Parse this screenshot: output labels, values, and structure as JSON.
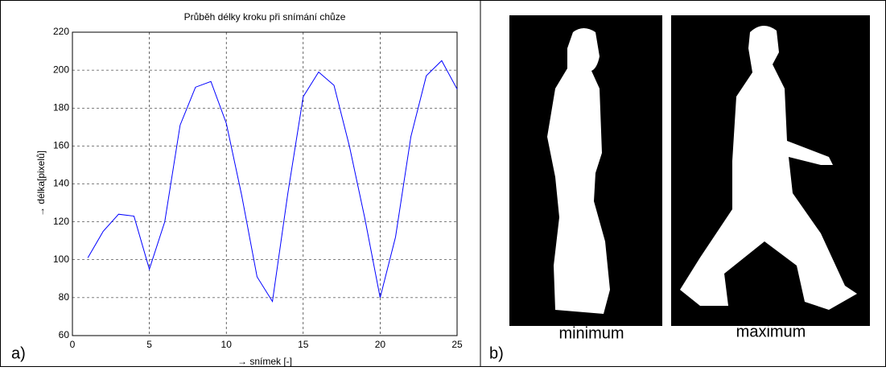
{
  "chart_data": {
    "type": "line",
    "title": "Průběh délky kroku při snímání chůze",
    "xlabel": "→ snímek [-]",
    "ylabel": "→ délka[pixelů]",
    "x": [
      1,
      2,
      3,
      4,
      5,
      6,
      7,
      8,
      9,
      10,
      11,
      12,
      13,
      14,
      15,
      16,
      17,
      18,
      19,
      20,
      21,
      22,
      23,
      24,
      25
    ],
    "series": [
      {
        "name": "délka kroku",
        "color": "#0000ff",
        "values": [
          101,
          115,
          124,
          123,
          95,
          120,
          171,
          191,
          194,
          172,
          134,
          91,
          78,
          135,
          186,
          199,
          192,
          160,
          122,
          80,
          112,
          165,
          197,
          205,
          190
        ]
      }
    ],
    "xlim": [
      0,
      25
    ],
    "xticks": [
      0,
      5,
      10,
      15,
      20,
      25
    ],
    "ylim": [
      60,
      220
    ],
    "yticks": [
      60,
      80,
      100,
      120,
      140,
      160,
      180,
      200,
      220
    ],
    "grid": true
  },
  "panel_labels": [
    "a)",
    "b)"
  ],
  "image_captions": [
    "minimum",
    "maximum"
  ]
}
